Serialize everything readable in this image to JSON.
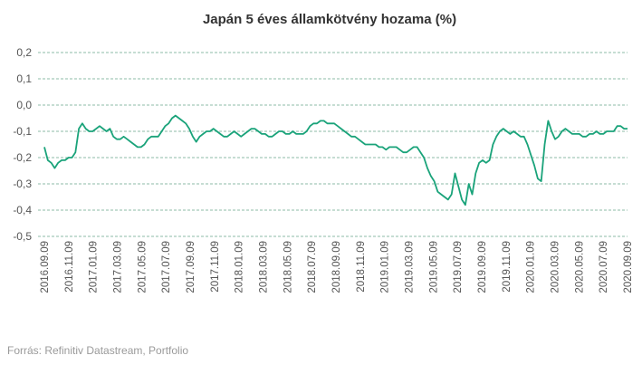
{
  "chart_data": {
    "type": "line",
    "title": "Japán 5 éves államkötvény hozama (%)",
    "source": "Forrás: Refinitiv Datastream, Portfolio",
    "line_color": "#1aa37a",
    "grid_color": "#6aa58a",
    "ylim": [
      -0.5,
      0.2
    ],
    "y_ticks": [
      0.2,
      0.1,
      0.0,
      -0.1,
      -0.2,
      -0.3,
      -0.4,
      -0.5
    ],
    "y_tick_labels": [
      "0,2",
      "0,1",
      "0,0",
      "-0,1",
      "-0,2",
      "-0,3",
      "-0,4",
      "-0,5"
    ],
    "x_tick_labels": [
      "2016.09.09",
      "2016.11.09",
      "2017.01.09",
      "2017.03.09",
      "2017.05.09",
      "2017.07.09",
      "2017.09.09",
      "2017.11.09",
      "2018.01.09",
      "2018.03.09",
      "2018.05.09",
      "2018.07.09",
      "2018.09.09",
      "2018.11.09",
      "2019.01.09",
      "2019.03.09",
      "2019.05.09",
      "2019.07.09",
      "2019.09.09",
      "2019.11.09",
      "2020.01.09",
      "2020.03.09",
      "2020.05.09",
      "2020.07.09",
      "2020.09.09"
    ],
    "grid": "horizontal-dashed",
    "series": [
      {
        "x_start": "2016.09.09",
        "x_end": "2020.09.09",
        "values": [
          -0.16,
          -0.21,
          -0.22,
          -0.24,
          -0.22,
          -0.21,
          -0.21,
          -0.2,
          -0.2,
          -0.18,
          -0.09,
          -0.07,
          -0.09,
          -0.1,
          -0.1,
          -0.09,
          -0.08,
          -0.09,
          -0.1,
          -0.09,
          -0.12,
          -0.13,
          -0.13,
          -0.12,
          -0.13,
          -0.14,
          -0.15,
          -0.16,
          -0.16,
          -0.15,
          -0.13,
          -0.12,
          -0.12,
          -0.12,
          -0.1,
          -0.08,
          -0.07,
          -0.05,
          -0.04,
          -0.05,
          -0.06,
          -0.07,
          -0.09,
          -0.12,
          -0.14,
          -0.12,
          -0.11,
          -0.1,
          -0.1,
          -0.09,
          -0.1,
          -0.11,
          -0.12,
          -0.12,
          -0.11,
          -0.1,
          -0.11,
          -0.12,
          -0.11,
          -0.1,
          -0.09,
          -0.09,
          -0.1,
          -0.11,
          -0.11,
          -0.12,
          -0.12,
          -0.11,
          -0.1,
          -0.1,
          -0.11,
          -0.11,
          -0.1,
          -0.11,
          -0.11,
          -0.11,
          -0.1,
          -0.08,
          -0.07,
          -0.07,
          -0.06,
          -0.06,
          -0.07,
          -0.07,
          -0.07,
          -0.08,
          -0.09,
          -0.1,
          -0.11,
          -0.12,
          -0.12,
          -0.13,
          -0.14,
          -0.15,
          -0.15,
          -0.15,
          -0.15,
          -0.16,
          -0.16,
          -0.17,
          -0.16,
          -0.16,
          -0.16,
          -0.17,
          -0.18,
          -0.18,
          -0.17,
          -0.16,
          -0.16,
          -0.18,
          -0.2,
          -0.24,
          -0.27,
          -0.29,
          -0.33,
          -0.34,
          -0.35,
          -0.36,
          -0.34,
          -0.26,
          -0.31,
          -0.36,
          -0.38,
          -0.3,
          -0.34,
          -0.26,
          -0.22,
          -0.21,
          -0.22,
          -0.21,
          -0.15,
          -0.12,
          -0.1,
          -0.09,
          -0.1,
          -0.11,
          -0.1,
          -0.11,
          -0.12,
          -0.12,
          -0.15,
          -0.19,
          -0.23,
          -0.28,
          -0.29,
          -0.15,
          -0.06,
          -0.1,
          -0.13,
          -0.12,
          -0.1,
          -0.09,
          -0.1,
          -0.11,
          -0.11,
          -0.11,
          -0.12,
          -0.12,
          -0.11,
          -0.11,
          -0.1,
          -0.11,
          -0.11,
          -0.1,
          -0.1,
          -0.1,
          -0.08,
          -0.08,
          -0.09,
          -0.09
        ]
      }
    ]
  }
}
